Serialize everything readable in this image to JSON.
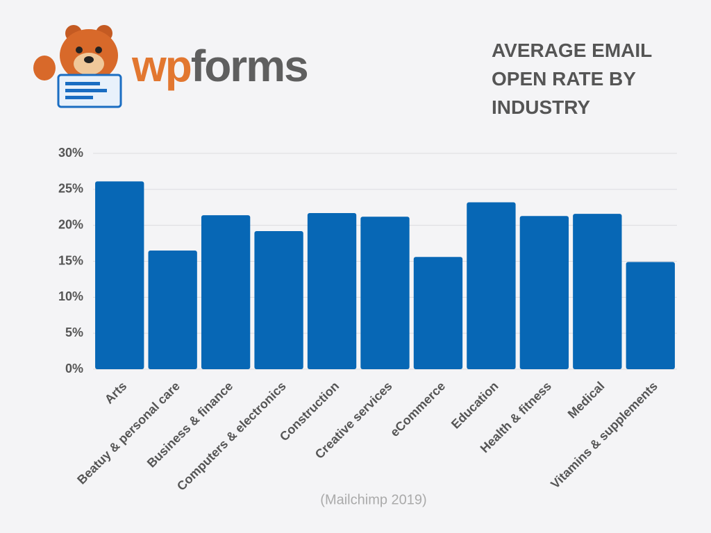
{
  "logo": [
    "wp",
    "forms"
  ],
  "chart_data": {
    "type": "bar",
    "title": "AVERAGE EMAIL OPEN RATE BY INDUSTRY",
    "source": "(Mailchimp 2019)",
    "categories": [
      "Arts",
      "Beatuy & personal care",
      "Business & finance",
      "Computers & electronics",
      "Construction",
      "Creative services",
      "eCommerce",
      "Education",
      "Health & fitness",
      "Medical",
      "Vitamins & supplements"
    ],
    "values": [
      26.1,
      16.5,
      21.4,
      19.2,
      21.7,
      21.2,
      15.6,
      23.2,
      21.3,
      21.6,
      14.9
    ],
    "color": "#0767b5",
    "ylim": [
      0,
      30
    ],
    "yticks": [
      {
        "value": 0,
        "label": "0%"
      },
      {
        "value": 5,
        "label": "5%"
      },
      {
        "value": 10,
        "label": "10%"
      },
      {
        "value": 15,
        "label": "15%"
      },
      {
        "value": 20,
        "label": "20%"
      },
      {
        "value": 25,
        "label": "25%"
      },
      {
        "value": 30,
        "label": "30%"
      }
    ],
    "grid": true
  }
}
